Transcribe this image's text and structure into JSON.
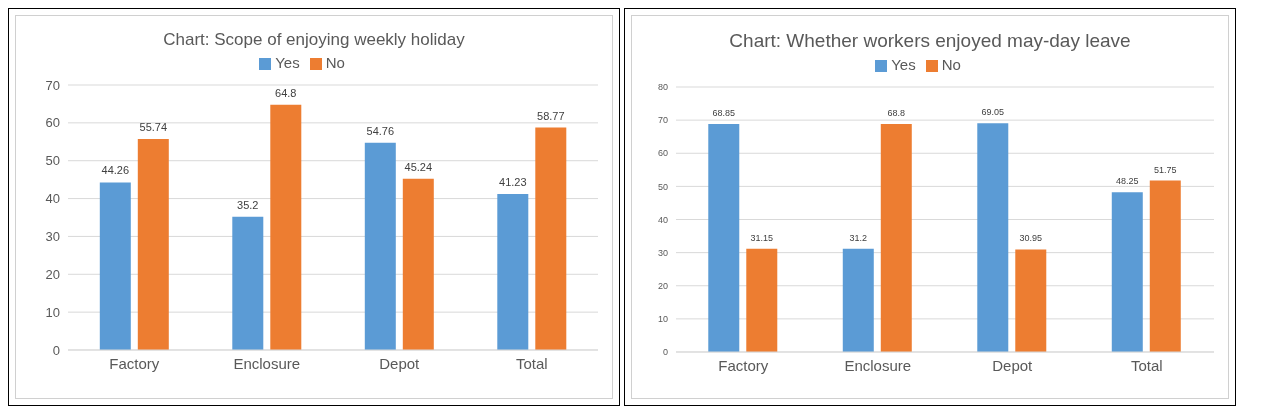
{
  "chart_data": [
    {
      "type": "bar",
      "title": "Chart: Scope of enjoying weekly holiday",
      "categories": [
        "Factory",
        "Enclosure",
        "Depot",
        "Total"
      ],
      "series": [
        {
          "name": "Yes",
          "color": "#5b9bd5",
          "values": [
            44.26,
            35.2,
            54.76,
            41.23
          ]
        },
        {
          "name": "No",
          "color": "#ed7d31",
          "values": [
            55.74,
            64.8,
            45.24,
            58.77
          ]
        }
      ],
      "ylim": [
        0,
        70
      ],
      "yticks": [
        0,
        10,
        20,
        30,
        40,
        50,
        60,
        70
      ],
      "grid": "y",
      "legend": "top",
      "data_labels": true
    },
    {
      "type": "bar",
      "title": "Chart: Whether workers enjoyed may-day leave",
      "categories": [
        "Factory",
        "Enclosure",
        "Depot",
        "Total"
      ],
      "series": [
        {
          "name": "Yes",
          "color": "#5b9bd5",
          "values": [
            68.85,
            31.2,
            69.05,
            48.25
          ]
        },
        {
          "name": "No",
          "color": "#ed7d31",
          "values": [
            31.15,
            68.8,
            30.95,
            51.75
          ]
        }
      ],
      "ylim": [
        0,
        80
      ],
      "yticks": [
        0,
        10,
        20,
        30,
        40,
        50,
        60,
        70,
        80
      ],
      "grid": "y",
      "legend": "top",
      "data_labels": true
    }
  ]
}
